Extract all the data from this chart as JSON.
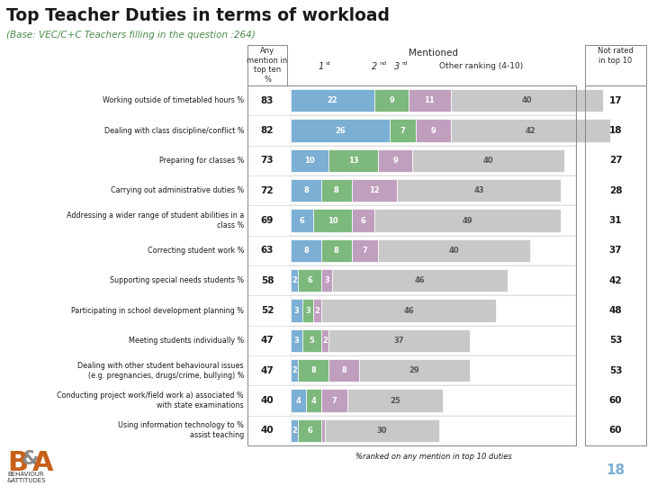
{
  "title": "Top Teacher Duties in terms of workload",
  "subtitle": "(Base: VEC/C+C Teachers filling in the question :264)",
  "categories": [
    "Working outside of timetabled hours %",
    "Dealing with class discipline/conflict %",
    "Preparing for classes %",
    "Carrying out administrative duties %",
    "Addressing a wider range of student abilities in a\nclass %",
    "Correcting student work %",
    "Supporting special needs students %",
    "Participating in school development planning %",
    "Meeting students individually %",
    "Dealing with other student behavioural issues\n(e.g. pregnancies, drugs/crime, bullying) %",
    "Conducting project work/field work a) associated %\nwith state examinations",
    "Using information technology to %\nassist teaching"
  ],
  "any_mention": [
    83,
    82,
    73,
    72,
    69,
    63,
    58,
    52,
    47,
    47,
    40,
    40
  ],
  "not_rated": [
    17,
    18,
    27,
    28,
    31,
    37,
    42,
    48,
    53,
    53,
    60,
    60
  ],
  "rank1": [
    22,
    26,
    10,
    8,
    6,
    8,
    2,
    3,
    3,
    2,
    4,
    2
  ],
  "rank2": [
    9,
    7,
    13,
    8,
    10,
    8,
    6,
    3,
    5,
    8,
    4,
    6
  ],
  "rank3": [
    11,
    9,
    9,
    12,
    6,
    7,
    3,
    2,
    2,
    8,
    7,
    1
  ],
  "rank_other": [
    40,
    42,
    40,
    43,
    49,
    40,
    46,
    46,
    37,
    29,
    25,
    30
  ],
  "color_rank1": "#7bafd4",
  "color_rank2": "#7db87d",
  "color_rank3": "#c09fbe",
  "color_other": "#c8c8c8",
  "color_title": "#1a1a2e",
  "color_subtitle": "#5a8a5a",
  "footnote": "%ranked on any mention in top 10 duties",
  "page_num": "18",
  "bar_max": 75
}
